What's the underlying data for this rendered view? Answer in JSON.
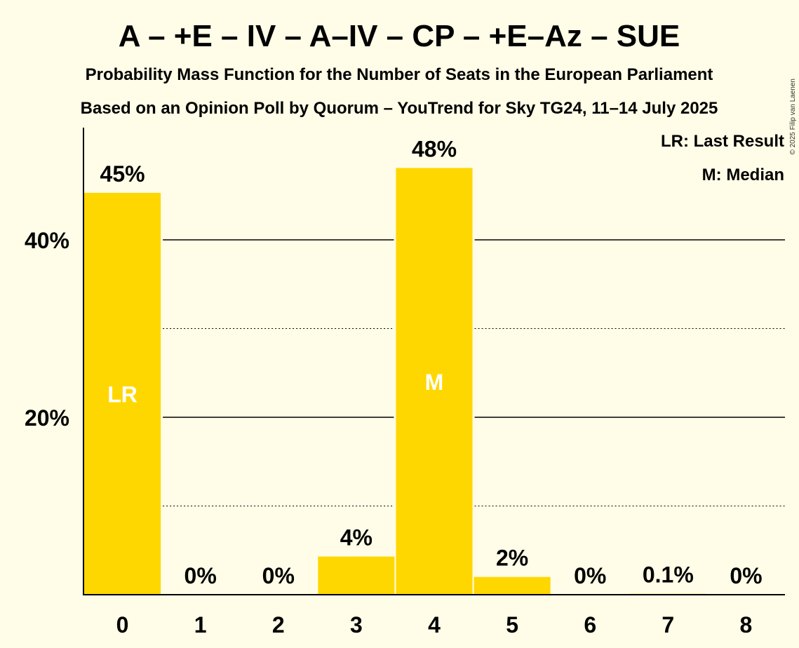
{
  "chart_data": {
    "type": "bar",
    "title": "A – +E – IV – A–IV – CP – +E–Az – SUE",
    "subtitle": "Probability Mass Function for the Number of Seats in the European Parliament",
    "subtitle2": "Based on an Opinion Poll by Quorum – YouTrend for Sky TG24, 11–14 July 2025",
    "categories": [
      "0",
      "1",
      "2",
      "3",
      "4",
      "5",
      "6",
      "7",
      "8"
    ],
    "values": [
      45.3,
      0,
      0,
      4.3,
      48.1,
      2.0,
      0,
      0.1,
      0
    ],
    "value_labels": [
      "45%",
      "0%",
      "0%",
      "4%",
      "48%",
      "2%",
      "0%",
      "0.1%",
      "0%"
    ],
    "ylim": [
      0,
      52.5
    ],
    "yticks_major": [
      20,
      40
    ],
    "ytick_labels": [
      "20%",
      "40%"
    ],
    "yticks_minor": [
      10,
      30
    ],
    "xlabel": "",
    "ylabel": "",
    "bar_color": "#FFD700",
    "bar_markers": [
      {
        "category": "0",
        "text": "LR"
      },
      {
        "category": "4",
        "text": "M"
      }
    ],
    "legend": {
      "position": "top-right",
      "items": [
        "LR: Last Result",
        "M: Median"
      ]
    },
    "copyright": "© 2025 Filip van Laenen"
  }
}
